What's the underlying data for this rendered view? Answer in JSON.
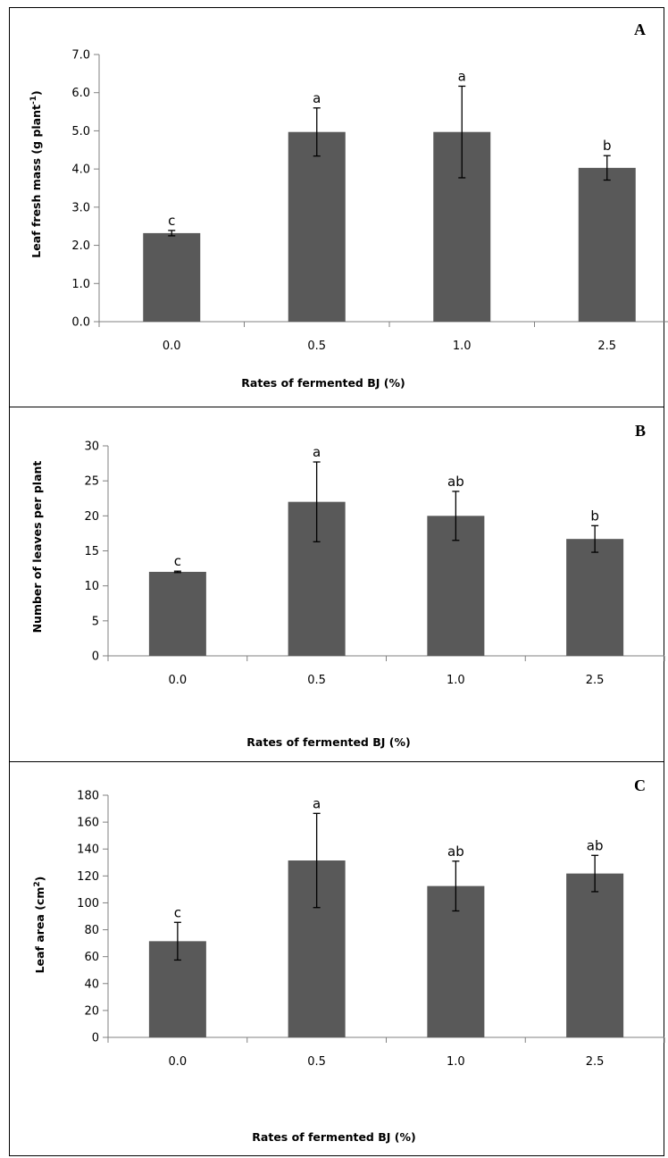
{
  "chart_data": [
    {
      "type": "bar",
      "panel": "A",
      "categories": [
        "0.0",
        "0.5",
        "1.0",
        "2.5"
      ],
      "values": [
        2.32,
        4.97,
        4.97,
        4.03
      ],
      "errors": [
        0.07,
        0.63,
        1.2,
        0.32
      ],
      "significance": [
        "c",
        "a",
        "a",
        "b"
      ],
      "ylabel_main": "Leaf fresh mass (g plant",
      "ylabel_sup": "-1",
      "ylabel_end": ")",
      "xlabel": "Rates of fermented BJ (%)",
      "ylim": [
        0,
        7
      ],
      "yticks": [
        "0.0",
        "1.0",
        "2.0",
        "3.0",
        "4.0",
        "5.0",
        "6.0",
        "7.0"
      ],
      "bar_color": "#595959"
    },
    {
      "type": "bar",
      "panel": "B",
      "categories": [
        "0.0",
        "0.5",
        "1.0",
        "2.5"
      ],
      "values": [
        12.0,
        22.0,
        20.0,
        16.7
      ],
      "errors": [
        0.1,
        5.7,
        3.5,
        1.9
      ],
      "significance": [
        "c",
        "a",
        "ab",
        "b"
      ],
      "ylabel_main": "Number of leaves per plant",
      "ylabel_sup": "",
      "ylabel_end": "",
      "xlabel": "Rates of fermented BJ (%)",
      "ylim": [
        0,
        30
      ],
      "yticks": [
        "0",
        "5",
        "10",
        "15",
        "20",
        "25",
        "30"
      ],
      "bar_color": "#595959"
    },
    {
      "type": "bar",
      "panel": "C",
      "categories": [
        "0.0",
        "0.5",
        "1.0",
        "2.5"
      ],
      "values": [
        71.5,
        131.5,
        112.5,
        121.8
      ],
      "errors": [
        14.0,
        35.0,
        18.5,
        13.5
      ],
      "significance": [
        "c",
        "a",
        "ab",
        "ab"
      ],
      "ylabel_main": "Leaf area (cm",
      "ylabel_sup": "2",
      "ylabel_end": ")",
      "xlabel": "Rates of fermented BJ (%)",
      "ylim": [
        0,
        180
      ],
      "yticks": [
        "0",
        "20",
        "40",
        "60",
        "80",
        "100",
        "120",
        "140",
        "160",
        "180"
      ],
      "bar_color": "#595959"
    }
  ]
}
